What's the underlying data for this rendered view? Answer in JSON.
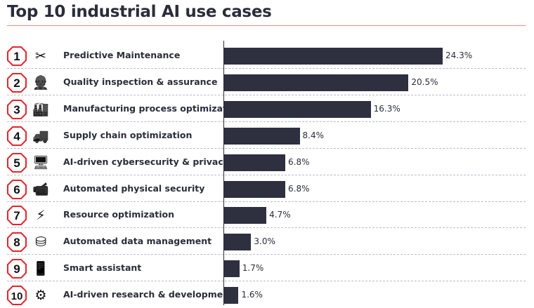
{
  "chart_data": {
    "type": "bar",
    "orientation": "horizontal",
    "title": "Top 10 industrial AI use cases",
    "xlim": [
      0,
      24.3
    ],
    "bar_color": "#2e3040",
    "accent_color": "#e8242b",
    "categories": [
      "Predictive Maintenance",
      "Quality inspection & assurance",
      "Manufacturing process optimization",
      "Supply chain optimization",
      "AI-driven cybersecurity & privacy",
      "Automated physical security",
      "Resource optimization",
      "Automated data management",
      "Smart assistant",
      "AI-driven research & development"
    ],
    "ranks": [
      "1",
      "2",
      "3",
      "4",
      "5",
      "6",
      "7",
      "8",
      "9",
      "10"
    ],
    "icons": [
      "wrench-screwdriver-icon",
      "worker-clipboard-icon",
      "factory-icon",
      "truck-icon",
      "monitor-lock-icon",
      "security-camera-icon",
      "energy-icon",
      "database-gear-icon",
      "smartphone-icon",
      "brain-gears-icon"
    ],
    "values": [
      24.3,
      20.5,
      16.3,
      8.4,
      6.8,
      6.8,
      4.7,
      3.0,
      1.7,
      1.6
    ],
    "value_labels": [
      "24.3%",
      "20.5%",
      "16.3%",
      "8.4%",
      "6.8%",
      "6.8%",
      "4.7%",
      "3.0%",
      "1.7%",
      "1.6%"
    ]
  }
}
